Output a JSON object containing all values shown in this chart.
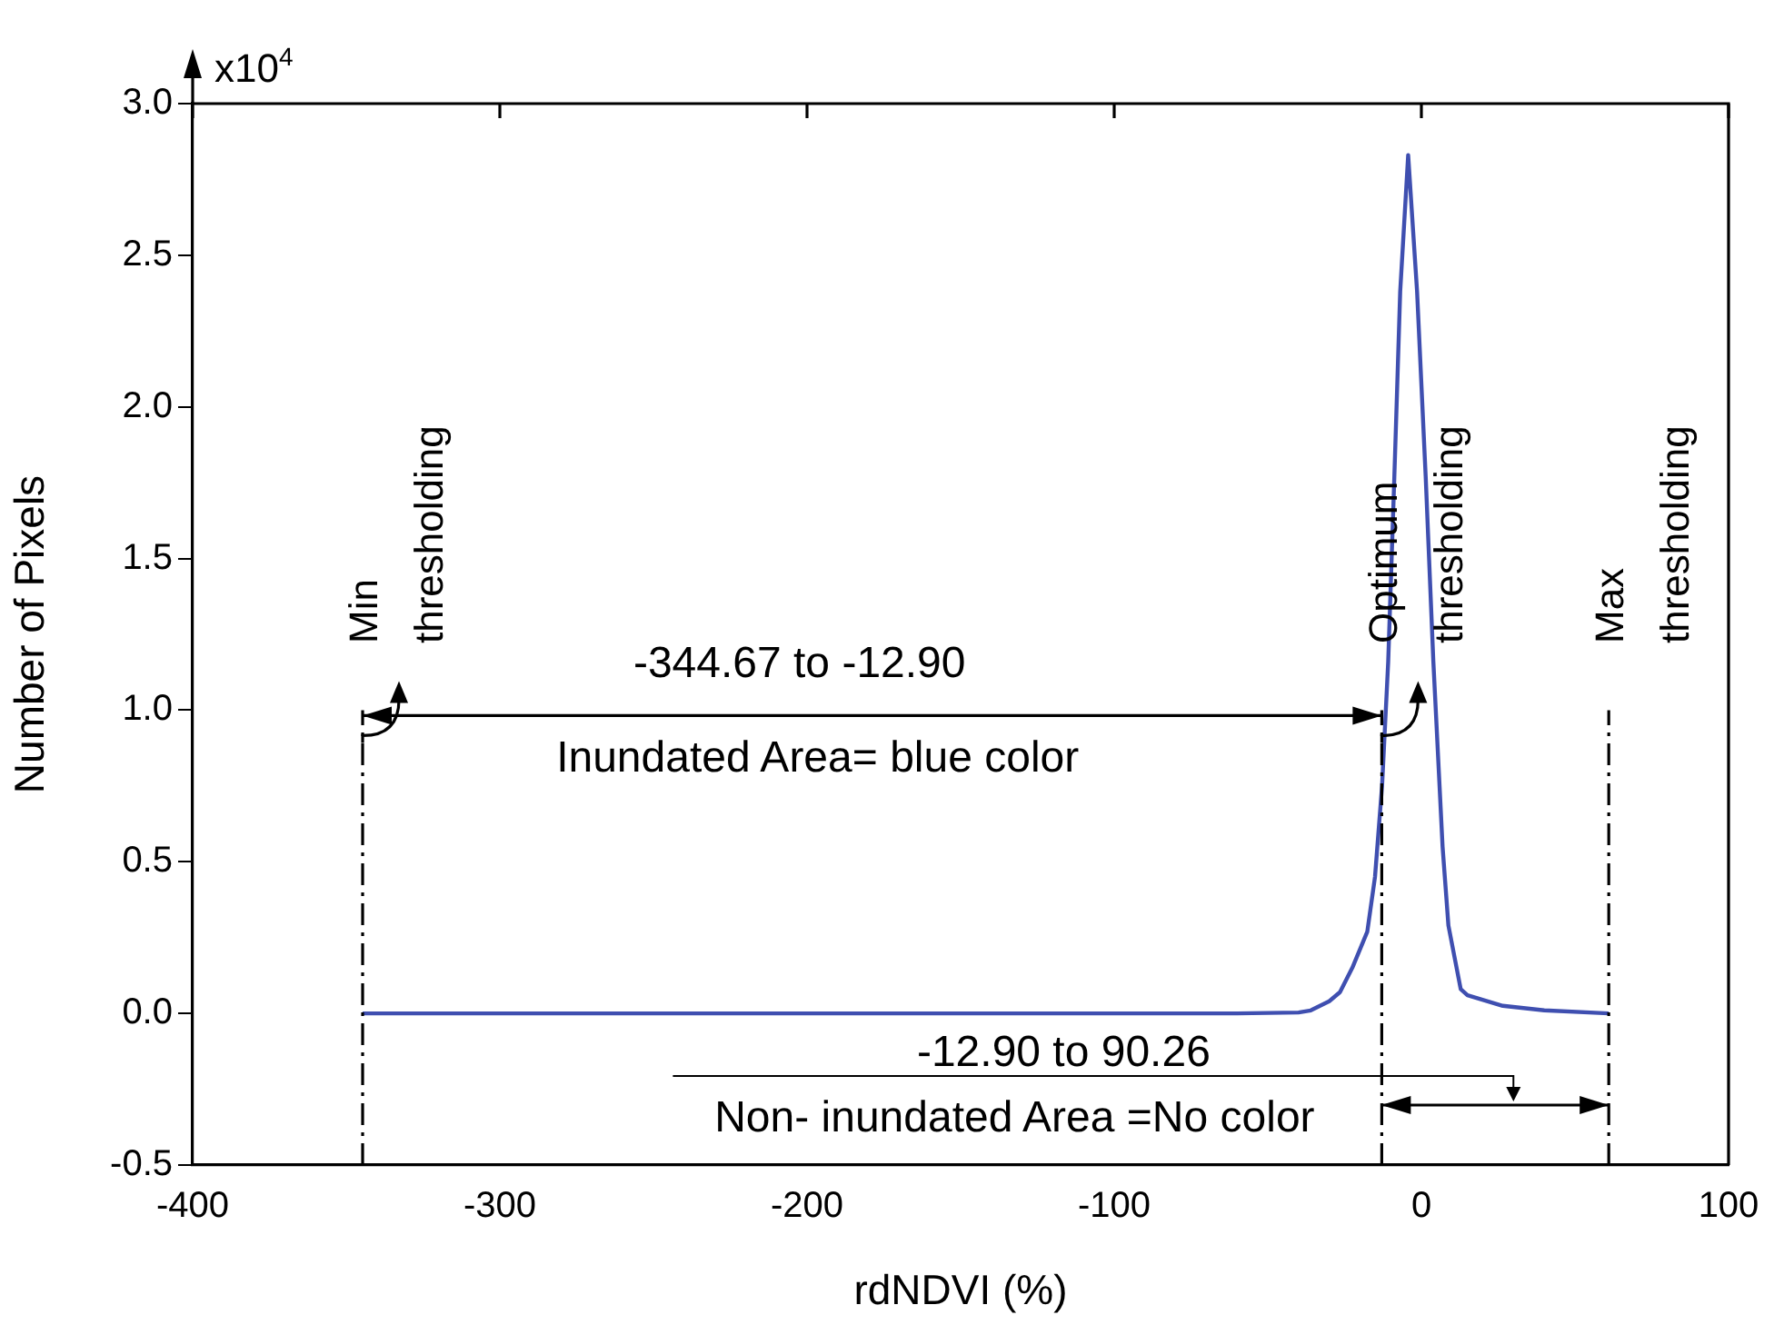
{
  "chart_data": {
    "type": "line",
    "xlabel": "rdNDVI (%)",
    "ylabel": "Number of Pixels",
    "xlim": [
      -400,
      100
    ],
    "xticks": [
      -400,
      -300,
      -200,
      -100,
      0,
      100
    ],
    "ylim": [
      -0.5,
      3.0
    ],
    "yticks": [
      {
        "value": -0.5,
        "label": "-0.5"
      },
      {
        "value": 0,
        "label": "0.0"
      },
      {
        "value": 0.5,
        "label": "0.5"
      },
      {
        "value": 1,
        "label": "1.0"
      },
      {
        "value": 1.5,
        "label": "1.5"
      },
      {
        "value": 2,
        "label": "2.0"
      },
      {
        "value": 2.5,
        "label": "2.5"
      },
      {
        "value": 3,
        "label": "3.0"
      }
    ],
    "grid": false,
    "legend": false,
    "marker": "none",
    "line_style": "solid",
    "series": [
      {
        "color": "#3f4fb0",
        "x": [
          -344.67,
          -60,
          -40,
          -36,
          -30,
          -26.5,
          -22.5,
          -17.6,
          -15.1,
          -12.8,
          -10.8,
          -8.8,
          -6.9,
          -4.3,
          -1.4,
          1.4,
          3.9,
          6.9,
          8.8,
          12.8,
          15,
          26.5,
          40,
          61
        ],
        "values": [
          0,
          0,
          0.003,
          0.01,
          0.04,
          0.07,
          0.15,
          0.27,
          0.45,
          0.75,
          1.16,
          1.77,
          2.38,
          2.83,
          2.38,
          1.77,
          1.16,
          0.55,
          0.29,
          0.08,
          0.06,
          0.025,
          0.01,
          0
        ]
      }
    ],
    "ref_lines": [
      {
        "axis": "x",
        "value": -344.67,
        "label": "Min thresholding",
        "line_style": "dashed",
        "color": "#000000"
      },
      {
        "axis": "x",
        "value": -12.9,
        "label": "Optimum thresholding",
        "line_style": "dashed",
        "color": "#000000"
      },
      {
        "axis": "x",
        "value": 61,
        "label": "Max thresholding",
        "line_style": "dashed",
        "color": "#000000"
      }
    ],
    "annotations": [
      "x10$^{4}$",
      "-344.67 to -12.90",
      "Inundated Area= blue color",
      "-12.90 to 90.26",
      "Non- inundated Area =No color"
    ]
  }
}
